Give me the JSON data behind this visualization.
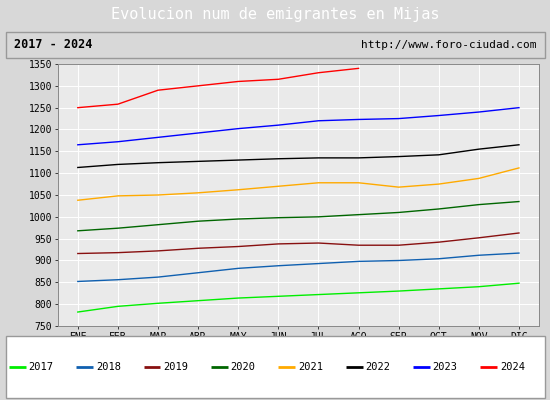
{
  "title": "Evolucion num de emigrantes en Mijas",
  "subtitle_left": "2017 - 2024",
  "subtitle_right": "http://www.foro-ciudad.com",
  "months": [
    "ENE",
    "FEB",
    "MAR",
    "ABR",
    "MAY",
    "JUN",
    "JUL",
    "AGO",
    "SEP",
    "OCT",
    "NOV",
    "DIC"
  ],
  "series": {
    "2017": {
      "color": "#00ee00",
      "data": [
        782,
        795,
        802,
        808,
        814,
        818,
        822,
        826,
        830,
        835,
        840,
        848
      ]
    },
    "2018": {
      "color": "#1060b0",
      "data": [
        852,
        856,
        862,
        872,
        882,
        888,
        893,
        898,
        900,
        904,
        912,
        917
      ]
    },
    "2019": {
      "color": "#881010",
      "data": [
        916,
        918,
        922,
        928,
        932,
        938,
        940,
        935,
        935,
        942,
        952,
        963
      ]
    },
    "2020": {
      "color": "#006600",
      "data": [
        968,
        974,
        982,
        990,
        995,
        998,
        1000,
        1005,
        1010,
        1018,
        1028,
        1035
      ]
    },
    "2021": {
      "color": "#ffaa00",
      "data": [
        1038,
        1048,
        1050,
        1055,
        1062,
        1070,
        1078,
        1078,
        1068,
        1075,
        1088,
        1112
      ]
    },
    "2022": {
      "color": "#000000",
      "data": [
        1113,
        1120,
        1124,
        1127,
        1130,
        1133,
        1135,
        1135,
        1138,
        1142,
        1155,
        1165
      ]
    },
    "2023": {
      "color": "#0000ff",
      "data": [
        1165,
        1172,
        1182,
        1192,
        1202,
        1210,
        1220,
        1223,
        1225,
        1232,
        1240,
        1250
      ]
    },
    "2024": {
      "color": "#ff0000",
      "data": [
        1250,
        1258,
        1290,
        1300,
        1310,
        1315,
        1330,
        1340,
        null,
        null,
        null,
        null
      ]
    }
  },
  "ylim": [
    750,
    1350
  ],
  "yticks": [
    750,
    800,
    850,
    900,
    950,
    1000,
    1050,
    1100,
    1150,
    1200,
    1250,
    1300,
    1350
  ],
  "background_color": "#d8d8d8",
  "plot_background": "#eaeaea",
  "title_bg": "#4472c4",
  "title_color": "#ffffff",
  "grid_color": "#ffffff",
  "legend_years": [
    "2017",
    "2018",
    "2019",
    "2020",
    "2021",
    "2022",
    "2023",
    "2024"
  ]
}
